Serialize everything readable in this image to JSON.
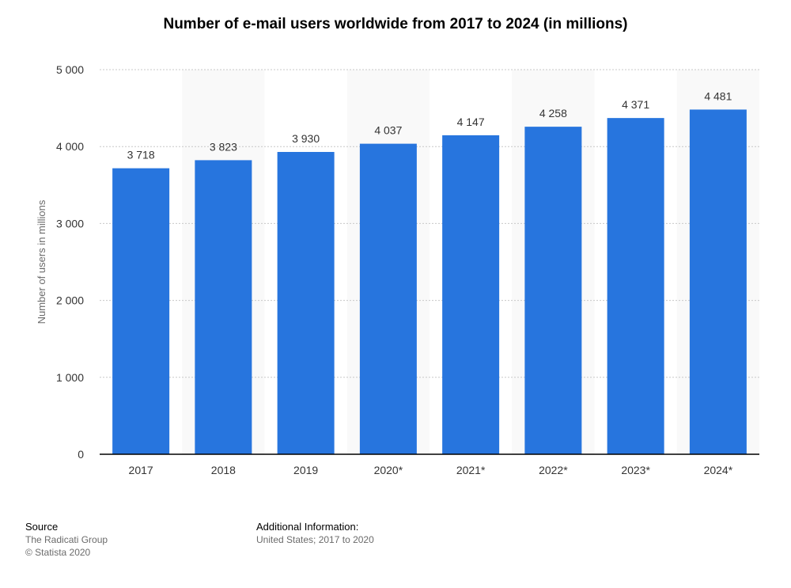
{
  "title": "Number of e-mail users worldwide from 2017 to 2024 (in millions)",
  "chart_data": {
    "type": "bar",
    "title": "Number of e-mail users worldwide from 2017 to 2024 (in millions)",
    "xlabel": "",
    "ylabel": "Number of users in millions",
    "categories": [
      "2017",
      "2018",
      "2019",
      "2020*",
      "2021*",
      "2022*",
      "2023*",
      "2024*"
    ],
    "values": [
      3718,
      3823,
      3930,
      4037,
      4147,
      4258,
      4371,
      4481
    ],
    "value_labels": [
      "3 718",
      "3 823",
      "3 930",
      "4 037",
      "4 147",
      "4 258",
      "4 371",
      "4 481"
    ],
    "ylim": [
      0,
      5000
    ],
    "yticks": [
      0,
      1000,
      2000,
      3000,
      4000,
      5000
    ],
    "ytick_labels": [
      "0",
      "1 000",
      "2 000",
      "3 000",
      "4 000",
      "5 000"
    ],
    "grid": true,
    "colors": {
      "bar": "#2775DE",
      "band": "#F9F9F9",
      "grid": "#C8C8C8",
      "axis": "#000000"
    }
  },
  "footer": {
    "source_title": "Source",
    "source_lines": [
      "The Radicati Group",
      "© Statista 2020"
    ],
    "info_title": "Additional Information:",
    "info_lines": [
      "United States; 2017 to 2020"
    ]
  }
}
